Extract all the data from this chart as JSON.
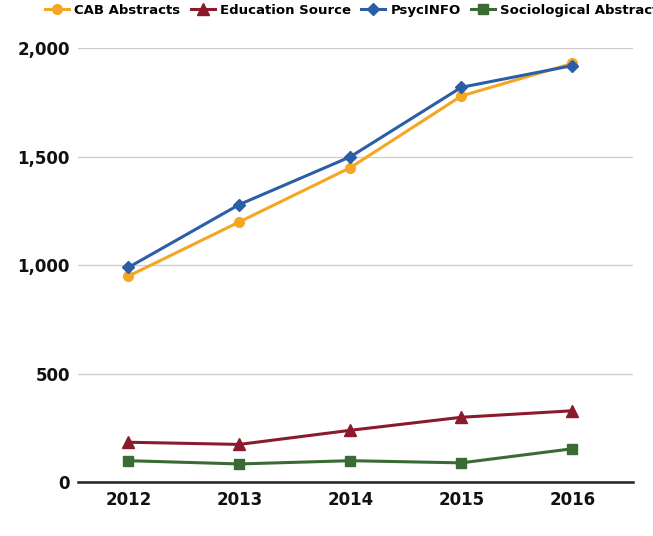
{
  "years": [
    2012,
    2013,
    2014,
    2015,
    2016
  ],
  "cab_abstracts": [
    950,
    1200,
    1450,
    1780,
    1930
  ],
  "psycinfo": [
    990,
    1280,
    1500,
    1820,
    1920
  ],
  "education_source": [
    185,
    175,
    240,
    300,
    330
  ],
  "sociological_abstracts": [
    100,
    85,
    100,
    90,
    155
  ],
  "cab_color": "#F5A623",
  "psycinfo_color": "#2B5EA7",
  "education_color": "#8B1A2C",
  "sociological_color": "#3A6B35",
  "ylim": [
    0,
    2000
  ],
  "yticks": [
    0,
    500,
    1000,
    1500,
    2000
  ],
  "ytick_labels": [
    "0",
    "500",
    "1,000",
    "1,500",
    "2,000"
  ],
  "background_color": "#ffffff",
  "grid_color": "#cccccc"
}
